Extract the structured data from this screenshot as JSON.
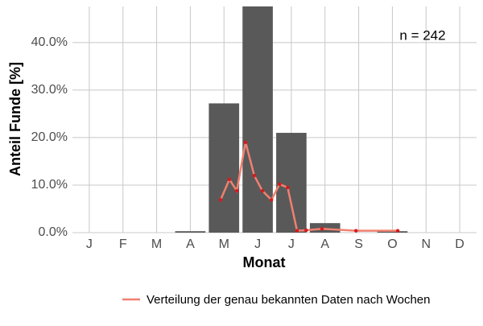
{
  "chart_data": {
    "type": "bar-line",
    "x_label": "Monat",
    "y_label": "Anteil Funde [%]",
    "annotation": "n = 242",
    "categories": [
      "J",
      "F",
      "M",
      "A",
      "M",
      "J",
      "J",
      "A",
      "S",
      "O",
      "N",
      "D"
    ],
    "bars": {
      "color": "#595959",
      "values": [
        0,
        0,
        0,
        0.3,
        27.2,
        47.6,
        21,
        2,
        0,
        0.3,
        0,
        0
      ]
    },
    "line": {
      "name": "Verteilung der genau bekannten Daten nach Wochen",
      "color": "#f08070",
      "point_color": "#d7191c",
      "x": [
        4.9,
        5.16,
        5.38,
        5.64,
        5.9,
        6.14,
        6.41,
        6.65,
        6.89,
        7.17,
        7.44,
        7.91,
        8.92,
        10.16
      ],
      "values": [
        6.9,
        11.2,
        8.8,
        19,
        12,
        8.8,
        6.9,
        10.2,
        9.5,
        0.4,
        0.5,
        0.8,
        0.4,
        0.4
      ]
    },
    "xlim": [
      0.5,
      12.5
    ],
    "ylim": [
      0,
      47.6
    ],
    "yticks": [
      {
        "value": 0,
        "label": "0.0%"
      },
      {
        "value": 10,
        "label": "10.0%"
      },
      {
        "value": 20,
        "label": "20.0%"
      },
      {
        "value": 30,
        "label": "30.0%"
      },
      {
        "value": 40,
        "label": "40.0%"
      }
    ],
    "grid": true,
    "legend": "bottom"
  }
}
